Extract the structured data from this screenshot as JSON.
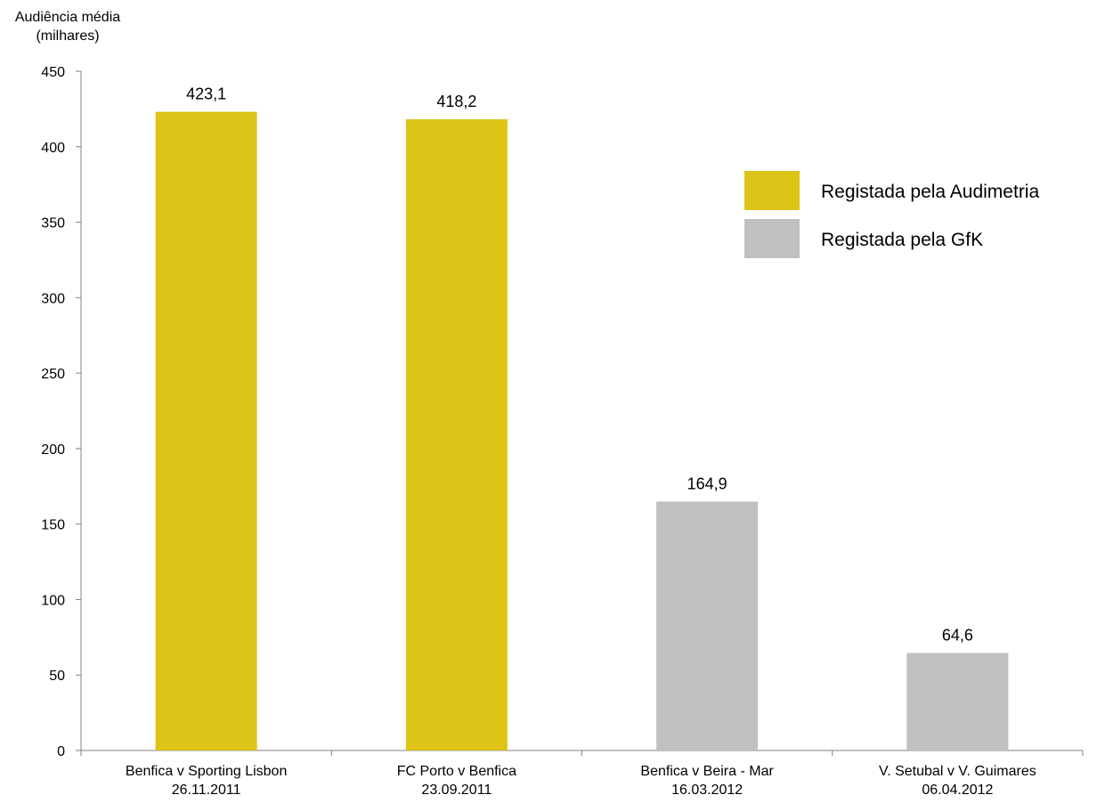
{
  "chart_data": {
    "type": "bar",
    "ylabel": "Audiência média\n(milhares)",
    "xlabel": "",
    "ylim": [
      0,
      450
    ],
    "yticks": [
      0,
      50,
      100,
      150,
      200,
      250,
      300,
      350,
      400,
      450
    ],
    "grid": false,
    "legend_position": "right",
    "categories": [
      "Benfica v Sporting Lisbon\n26.11.2011",
      "FC Porto v Benfica\n23.09.2011",
      "Benfica v Beira - Mar\n16.03.2012",
      "V. Setubal v V. Guimares\n06.04.2012"
    ],
    "series": [
      {
        "name": "Registada pela Audimetria",
        "color": "#DDC417",
        "values": [
          423.1,
          418.2,
          null,
          null
        ],
        "data_labels": [
          "423,1",
          "418,2",
          null,
          null
        ]
      },
      {
        "name": "Registada pela GfK",
        "color": "#C0C0C0",
        "values": [
          null,
          null,
          164.9,
          64.6
        ],
        "data_labels": [
          null,
          null,
          "164,9",
          "64,6"
        ]
      }
    ]
  }
}
